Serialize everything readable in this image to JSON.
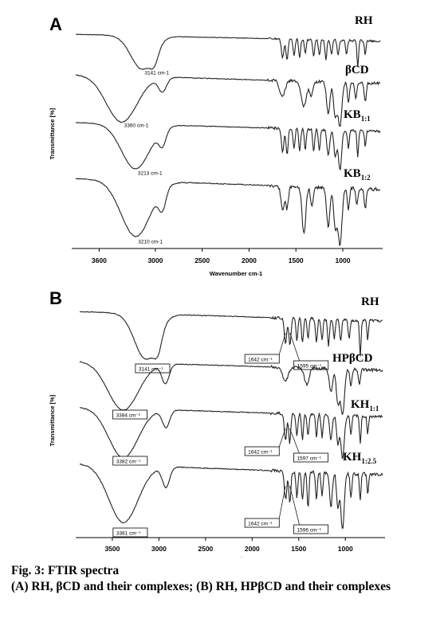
{
  "chart_data": [
    {
      "type": "line",
      "panel": "A",
      "xlabel": "Wavenumber cm-1",
      "ylabel": "Transmittance [%]",
      "xlim": [
        3850,
        600
      ],
      "xticks": [
        3600,
        3000,
        2500,
        2000,
        1500,
        1000
      ],
      "series": [
        {
          "name": "RH",
          "sub": "",
          "peaks": [
            {
              "x": 3141,
              "depth": 0.95,
              "w": 170
            },
            {
              "x": 3010,
              "depth": 0.35,
              "w": 60
            },
            {
              "x": 1642,
              "depth": 0.55,
              "w": 18
            },
            {
              "x": 1595,
              "depth": 0.6,
              "w": 16
            },
            {
              "x": 1520,
              "depth": 0.45,
              "w": 14
            },
            {
              "x": 1460,
              "depth": 0.5,
              "w": 14
            },
            {
              "x": 1400,
              "depth": 0.4,
              "w": 14
            },
            {
              "x": 1310,
              "depth": 0.5,
              "w": 14
            },
            {
              "x": 1250,
              "depth": 0.45,
              "w": 14
            },
            {
              "x": 1180,
              "depth": 0.55,
              "w": 14
            },
            {
              "x": 1120,
              "depth": 0.4,
              "w": 14
            },
            {
              "x": 1050,
              "depth": 0.45,
              "w": 14
            },
            {
              "x": 960,
              "depth": 0.4,
              "w": 14
            },
            {
              "x": 840,
              "depth": 0.75,
              "w": 12
            },
            {
              "x": 760,
              "depth": 0.4,
              "w": 12
            }
          ],
          "annotations": [
            {
              "x": 3141,
              "text": "3141 cm-1",
              "boxed": false
            }
          ]
        },
        {
          "name": "βCD",
          "sub": "",
          "peaks": [
            {
              "x": 3360,
              "depth": 1.0,
              "w": 230
            },
            {
              "x": 2925,
              "depth": 0.3,
              "w": 60
            },
            {
              "x": 1645,
              "depth": 0.35,
              "w": 40
            },
            {
              "x": 1415,
              "depth": 0.55,
              "w": 40
            },
            {
              "x": 1335,
              "depth": 0.3,
              "w": 25
            },
            {
              "x": 1155,
              "depth": 0.7,
              "w": 25
            },
            {
              "x": 1080,
              "depth": 0.75,
              "w": 25
            },
            {
              "x": 1030,
              "depth": 0.95,
              "w": 28
            },
            {
              "x": 940,
              "depth": 0.45,
              "w": 15
            },
            {
              "x": 860,
              "depth": 0.35,
              "w": 15
            },
            {
              "x": 760,
              "depth": 0.4,
              "w": 15
            }
          ],
          "annotations": [
            {
              "x": 3360,
              "text": "3360 cm-1",
              "boxed": false
            }
          ]
        },
        {
          "name": "KB",
          "sub": "1:1",
          "peaks": [
            {
              "x": 3213,
              "depth": 1.0,
              "w": 210
            },
            {
              "x": 2925,
              "depth": 0.35,
              "w": 55
            },
            {
              "x": 1642,
              "depth": 0.55,
              "w": 18
            },
            {
              "x": 1595,
              "depth": 0.6,
              "w": 16
            },
            {
              "x": 1520,
              "depth": 0.45,
              "w": 14
            },
            {
              "x": 1460,
              "depth": 0.5,
              "w": 14
            },
            {
              "x": 1400,
              "depth": 0.45,
              "w": 14
            },
            {
              "x": 1310,
              "depth": 0.5,
              "w": 14
            },
            {
              "x": 1250,
              "depth": 0.45,
              "w": 14
            },
            {
              "x": 1155,
              "depth": 0.6,
              "w": 20
            },
            {
              "x": 1080,
              "depth": 0.6,
              "w": 20
            },
            {
              "x": 1030,
              "depth": 0.9,
              "w": 25
            },
            {
              "x": 940,
              "depth": 0.4,
              "w": 14
            },
            {
              "x": 840,
              "depth": 0.6,
              "w": 12
            },
            {
              "x": 760,
              "depth": 0.35,
              "w": 12
            }
          ],
          "annotations": [
            {
              "x": 3213,
              "text": "3213 cm-1",
              "boxed": false
            }
          ]
        },
        {
          "name": "KB",
          "sub": "1:2",
          "peaks": [
            {
              "x": 3210,
              "depth": 1.0,
              "w": 220
            },
            {
              "x": 2925,
              "depth": 0.35,
              "w": 55
            },
            {
              "x": 1642,
              "depth": 0.45,
              "w": 25
            },
            {
              "x": 1595,
              "depth": 0.4,
              "w": 20
            },
            {
              "x": 1415,
              "depth": 0.85,
              "w": 28
            },
            {
              "x": 1330,
              "depth": 0.35,
              "w": 20
            },
            {
              "x": 1155,
              "depth": 0.7,
              "w": 25
            },
            {
              "x": 1080,
              "depth": 0.7,
              "w": 25
            },
            {
              "x": 1030,
              "depth": 1.0,
              "w": 30
            },
            {
              "x": 940,
              "depth": 0.4,
              "w": 15
            },
            {
              "x": 850,
              "depth": 0.3,
              "w": 15
            },
            {
              "x": 760,
              "depth": 0.35,
              "w": 15
            }
          ],
          "annotations": [
            {
              "x": 3210,
              "text": "3210 cm-1",
              "boxed": false
            }
          ]
        }
      ]
    },
    {
      "type": "line",
      "panel": "B",
      "xlabel": "Wavenumber cm-1",
      "ylabel": "Transmittance [%]",
      "xlim": [
        3850,
        600
      ],
      "xticks": [
        3500,
        3000,
        2500,
        2000,
        1500,
        1000
      ],
      "series": [
        {
          "name": "RH",
          "sub": "",
          "peaks": [
            {
              "x": 3141,
              "depth": 0.95,
              "w": 170
            },
            {
              "x": 3010,
              "depth": 0.35,
              "w": 60
            },
            {
              "x": 1642,
              "depth": 0.55,
              "w": 18
            },
            {
              "x": 1595,
              "depth": 0.6,
              "w": 16
            },
            {
              "x": 1520,
              "depth": 0.45,
              "w": 14
            },
            {
              "x": 1460,
              "depth": 0.5,
              "w": 14
            },
            {
              "x": 1400,
              "depth": 0.4,
              "w": 14
            },
            {
              "x": 1310,
              "depth": 0.5,
              "w": 14
            },
            {
              "x": 1250,
              "depth": 0.45,
              "w": 14
            },
            {
              "x": 1180,
              "depth": 0.55,
              "w": 14
            },
            {
              "x": 1120,
              "depth": 0.4,
              "w": 14
            },
            {
              "x": 1050,
              "depth": 0.45,
              "w": 14
            },
            {
              "x": 960,
              "depth": 0.4,
              "w": 14
            },
            {
              "x": 840,
              "depth": 0.75,
              "w": 12
            },
            {
              "x": 760,
              "depth": 0.4,
              "w": 12
            }
          ],
          "annotations": [
            {
              "x": 3141,
              "text": "3141 cm⁻¹",
              "boxed": true
            },
            {
              "x": 1642,
              "text": "1642 cm⁻¹",
              "boxed": true
            },
            {
              "x": 1595,
              "text": "1595 cm⁻¹",
              "boxed": true
            }
          ]
        },
        {
          "name": "HPβCD",
          "sub": "",
          "peaks": [
            {
              "x": 3384,
              "depth": 1.0,
              "w": 230
            },
            {
              "x": 2930,
              "depth": 0.4,
              "w": 55
            },
            {
              "x": 1645,
              "depth": 0.3,
              "w": 40
            },
            {
              "x": 1415,
              "depth": 0.35,
              "w": 35
            },
            {
              "x": 1155,
              "depth": 0.5,
              "w": 25
            },
            {
              "x": 1080,
              "depth": 0.7,
              "w": 25
            },
            {
              "x": 1030,
              "depth": 0.95,
              "w": 28
            },
            {
              "x": 940,
              "depth": 0.35,
              "w": 15
            },
            {
              "x": 850,
              "depth": 0.3,
              "w": 15
            }
          ],
          "annotations": [
            {
              "x": 3384,
              "text": "3384 cm⁻¹",
              "boxed": true
            }
          ]
        },
        {
          "name": "KH",
          "sub": "1:1",
          "peaks": [
            {
              "x": 3382,
              "depth": 1.0,
              "w": 220
            },
            {
              "x": 2925,
              "depth": 0.35,
              "w": 55
            },
            {
              "x": 1642,
              "depth": 0.55,
              "w": 18
            },
            {
              "x": 1597,
              "depth": 0.6,
              "w": 16
            },
            {
              "x": 1520,
              "depth": 0.45,
              "w": 14
            },
            {
              "x": 1460,
              "depth": 0.5,
              "w": 14
            },
            {
              "x": 1400,
              "depth": 0.45,
              "w": 14
            },
            {
              "x": 1310,
              "depth": 0.45,
              "w": 14
            },
            {
              "x": 1250,
              "depth": 0.45,
              "w": 14
            },
            {
              "x": 1155,
              "depth": 0.5,
              "w": 20
            },
            {
              "x": 1080,
              "depth": 0.6,
              "w": 20
            },
            {
              "x": 1030,
              "depth": 0.9,
              "w": 25
            },
            {
              "x": 940,
              "depth": 0.4,
              "w": 14
            },
            {
              "x": 840,
              "depth": 0.55,
              "w": 12
            },
            {
              "x": 760,
              "depth": 0.35,
              "w": 12
            }
          ],
          "annotations": [
            {
              "x": 3382,
              "text": "3382 cm⁻¹",
              "boxed": true
            },
            {
              "x": 1642,
              "text": "1642 cm⁻¹",
              "boxed": true
            },
            {
              "x": 1597,
              "text": "1597 cm⁻¹",
              "boxed": true
            }
          ]
        },
        {
          "name": "KH",
          "sub": "1:2.5",
          "peaks": [
            {
              "x": 3381,
              "depth": 1.0,
              "w": 220
            },
            {
              "x": 2925,
              "depth": 0.35,
              "w": 55
            },
            {
              "x": 1642,
              "depth": 0.5,
              "w": 18
            },
            {
              "x": 1596,
              "depth": 0.55,
              "w": 16
            },
            {
              "x": 1520,
              "depth": 0.45,
              "w": 14
            },
            {
              "x": 1460,
              "depth": 0.5,
              "w": 14
            },
            {
              "x": 1400,
              "depth": 0.65,
              "w": 14
            },
            {
              "x": 1310,
              "depth": 0.45,
              "w": 14
            },
            {
              "x": 1250,
              "depth": 0.4,
              "w": 14
            },
            {
              "x": 1155,
              "depth": 0.6,
              "w": 20
            },
            {
              "x": 1080,
              "depth": 0.6,
              "w": 20
            },
            {
              "x": 1030,
              "depth": 1.0,
              "w": 25
            },
            {
              "x": 940,
              "depth": 0.4,
              "w": 14
            },
            {
              "x": 840,
              "depth": 0.45,
              "w": 12
            },
            {
              "x": 760,
              "depth": 0.35,
              "w": 12
            }
          ],
          "annotations": [
            {
              "x": 3381,
              "text": "3381 cm⁻¹",
              "boxed": true
            },
            {
              "x": 1642,
              "text": "1642 cm⁻¹",
              "boxed": true
            },
            {
              "x": 1596,
              "text": "1596 cm⁻¹",
              "boxed": true
            }
          ]
        }
      ]
    }
  ],
  "caption": {
    "title": "Fig. 3: FTIR spectra",
    "text": "(A) RH, βCD and their complexes; (B) RH, HPβCD and their complexes"
  }
}
